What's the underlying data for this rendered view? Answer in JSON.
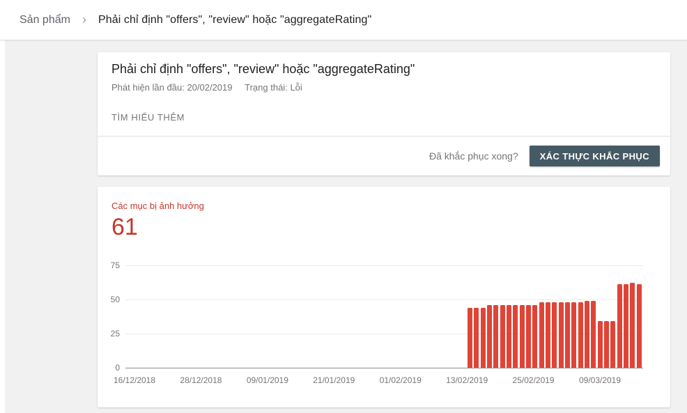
{
  "breadcrumb": {
    "parent": "Sản phẩm",
    "current": "Phải chỉ định \"offers\", \"review\" hoặc \"aggregateRating\""
  },
  "detail_card": {
    "title": "Phải chỉ định \"offers\", \"review\" hoặc \"aggregateRating\"",
    "first_detected_label": "Phát hiện lần đầu:",
    "first_detected_value": "20/02/2019",
    "status_label": "Trạng thái:",
    "status_value": "Lỗi",
    "learn_more": "TÌM HIỂU THÊM",
    "fixed_question": "Đã khắc phục xong?",
    "validate_button": "XÁC THỰC KHẮC PHỤC"
  },
  "chart_card": {
    "metric_label": "Các mục bị ảnh hưởng",
    "metric_value": "61"
  },
  "chart_data": {
    "type": "bar",
    "title": "Các mục bị ảnh hưởng",
    "dates": [
      "14/02/2019",
      "15/02/2019",
      "16/02/2019",
      "17/02/2019",
      "18/02/2019",
      "19/02/2019",
      "20/02/2019",
      "21/02/2019",
      "22/02/2019",
      "23/02/2019",
      "24/02/2019",
      "25/02/2019",
      "26/02/2019",
      "27/02/2019",
      "28/02/2019",
      "01/03/2019",
      "02/03/2019",
      "03/03/2019",
      "04/03/2019",
      "05/03/2019",
      "06/03/2019",
      "07/03/2019",
      "08/03/2019",
      "09/03/2019",
      "10/03/2019",
      "11/03/2019",
      "12/03/2019"
    ],
    "values": [
      44,
      44,
      44,
      46,
      46,
      46,
      46,
      46,
      46,
      46,
      46,
      48,
      48,
      48,
      48,
      48,
      48,
      48,
      49,
      49,
      34,
      34,
      34,
      61,
      61,
      62,
      61
    ],
    "y_ticks": [
      0,
      25,
      50,
      75
    ],
    "ylim": [
      0,
      75
    ],
    "x_tick_labels": [
      "16/12/2018",
      "28/12/2018",
      "09/01/2019",
      "21/01/2019",
      "01/02/2019",
      "13/02/2019",
      "25/02/2019",
      "09/03/2019"
    ],
    "grid": true,
    "legend": "none",
    "bar_color": "#df4437"
  },
  "colors": {
    "error_text": "#c5382c",
    "bar_red": "#df4437",
    "button_slate": "#455a64",
    "page_background": "#f1f1f1",
    "muted_text": "#757575"
  }
}
